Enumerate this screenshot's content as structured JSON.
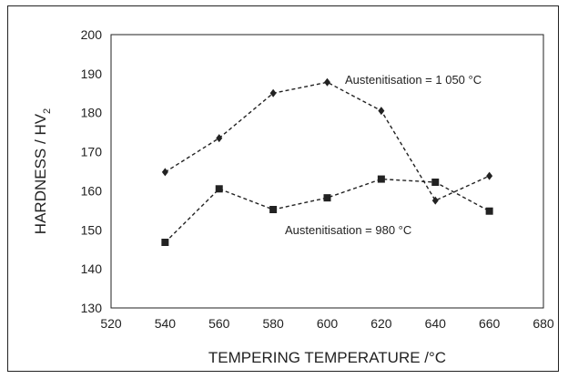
{
  "chart_data": {
    "type": "line",
    "xlabel": "TEMPERING TEMPERATURE /°C",
    "ylabel": "HARDNESS / HV",
    "ylabel_subscript": "2",
    "xlim": [
      520,
      680
    ],
    "ylim": [
      130,
      200
    ],
    "xticks": [
      520,
      540,
      560,
      580,
      600,
      620,
      640,
      660,
      680
    ],
    "yticks": [
      130,
      140,
      150,
      160,
      170,
      180,
      190,
      200
    ],
    "grid": false,
    "legend": "none",
    "series": [
      {
        "name": "Austenitisation = 1 050 °C",
        "marker": "diamond",
        "line_style": "dashed",
        "color": "#222222",
        "x": [
          540,
          560,
          580,
          600,
          620,
          640,
          660
        ],
        "values": [
          164.8,
          173.5,
          185.0,
          187.8,
          180.5,
          157.5,
          163.8
        ]
      },
      {
        "name": "Austenitisation = 980 °C",
        "marker": "square",
        "line_style": "dashed",
        "color": "#222222",
        "x": [
          540,
          560,
          580,
          600,
          620,
          640,
          660
        ],
        "values": [
          146.8,
          160.5,
          155.2,
          158.2,
          163.0,
          162.2,
          154.8
        ]
      }
    ]
  }
}
